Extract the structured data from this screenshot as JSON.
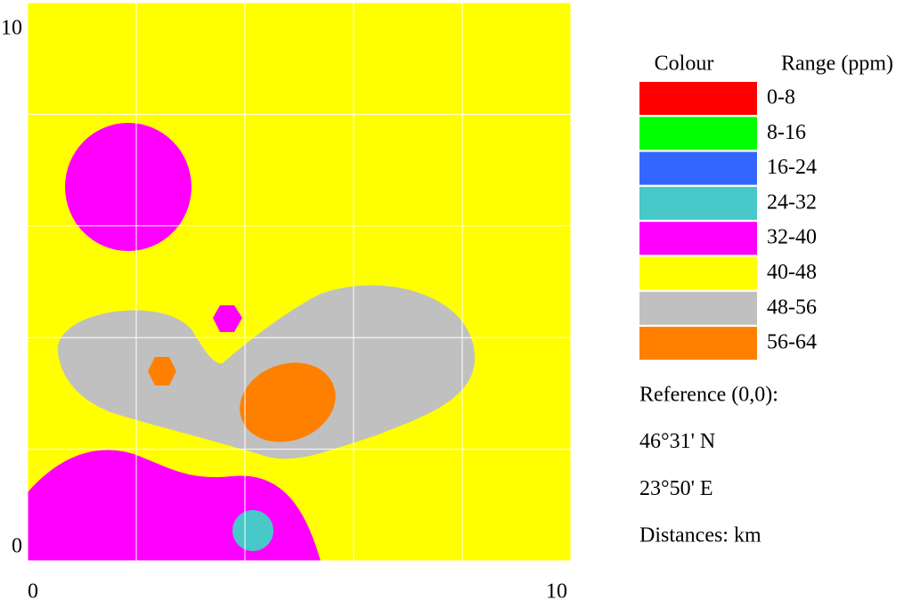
{
  "map": {
    "xlim": [
      0,
      10
    ],
    "ylim": [
      0,
      10
    ],
    "xticks": [
      0,
      10
    ],
    "yticks": [
      0,
      10
    ],
    "grid": true,
    "grid_lines": [
      0,
      2,
      4,
      6,
      8,
      10
    ],
    "background_range": 5,
    "legend": {
      "headers": [
        "Colour",
        "Range (ppm)"
      ],
      "items": [
        {
          "label": "0-8",
          "color": "#ff0000"
        },
        {
          "label": "8-16",
          "color": "#00ff00"
        },
        {
          "label": "16-24",
          "color": "#3366ff"
        },
        {
          "label": "24-32",
          "color": "#48c8c8"
        },
        {
          "label": "32-40",
          "color": "#ff00ff"
        },
        {
          "label": "40-48",
          "color": "#ffff00"
        },
        {
          "label": "48-56",
          "color": "#c0c0c0"
        },
        {
          "label": "56-64",
          "color": "#ff8000"
        }
      ]
    },
    "notes": [
      "Reference (0,0):",
      "46°31' N",
      "23°50' E",
      "Distances: km"
    ]
  }
}
